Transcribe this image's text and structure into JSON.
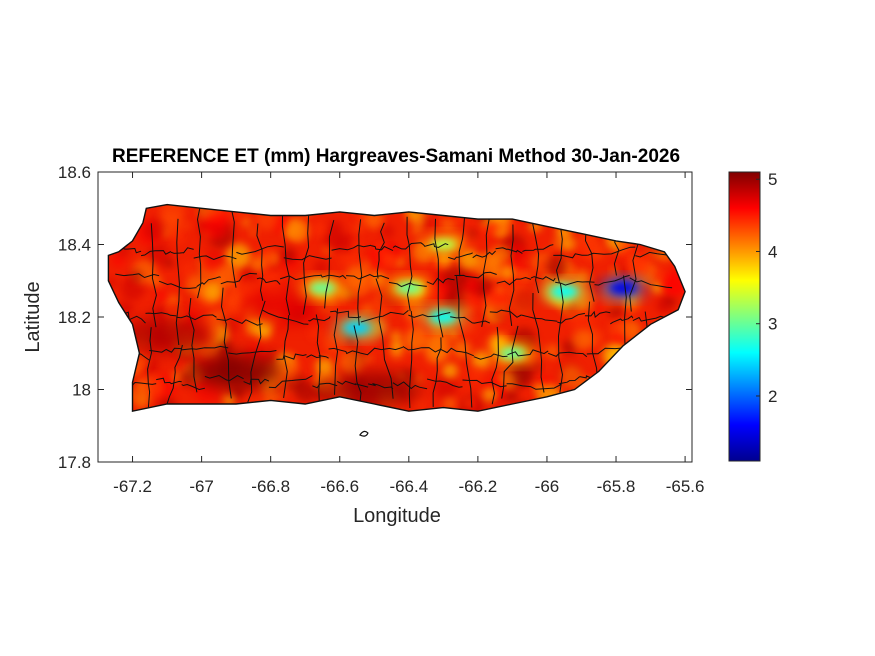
{
  "title": "REFERENCE ET (mm) Hargreaves-Samani Method  30-Jan-2026",
  "colors": {
    "background": "#ffffff",
    "axis": "#262626",
    "boundary": "#111111",
    "colormap": "jet"
  },
  "chart_data": {
    "type": "heatmap",
    "title": "REFERENCE ET (mm) Hargreaves-Samani Method  30-Jan-2026",
    "xlabel": "Longitude",
    "ylabel": "Latitude",
    "xlim": [
      -67.3,
      -65.58
    ],
    "ylim": [
      17.8,
      18.6
    ],
    "xticks": [
      -67.2,
      -67,
      -66.8,
      -66.6,
      -66.4,
      -66.2,
      -66,
      -65.8,
      -65.6
    ],
    "xtick_labels": [
      "-67.2",
      "-67",
      "-66.8",
      "-66.6",
      "-66.4",
      "-66.2",
      "-66",
      "-65.8",
      "-65.6"
    ],
    "yticks": [
      17.8,
      18,
      18.2,
      18.4,
      18.6
    ],
    "ytick_labels": [
      "17.8",
      "18",
      "18.2",
      "18.4",
      "18.6"
    ],
    "colorbar": {
      "min": 1.1,
      "max": 5.1,
      "ticks": [
        2,
        3,
        4,
        5
      ],
      "tick_labels": [
        "2",
        "3",
        "4",
        "5"
      ],
      "colormap": "jet"
    },
    "grid": false,
    "island_outline": [
      [
        -67.27,
        18.37
      ],
      [
        -67.24,
        18.38
      ],
      [
        -67.2,
        18.41
      ],
      [
        -67.17,
        18.46
      ],
      [
        -67.16,
        18.5
      ],
      [
        -67.1,
        18.51
      ],
      [
        -67.0,
        18.5
      ],
      [
        -66.9,
        18.49
      ],
      [
        -66.8,
        18.48
      ],
      [
        -66.7,
        18.48
      ],
      [
        -66.6,
        18.49
      ],
      [
        -66.5,
        18.48
      ],
      [
        -66.4,
        18.49
      ],
      [
        -66.3,
        18.48
      ],
      [
        -66.2,
        18.47
      ],
      [
        -66.1,
        18.47
      ],
      [
        -66.0,
        18.45
      ],
      [
        -65.9,
        18.43
      ],
      [
        -65.8,
        18.41
      ],
      [
        -65.73,
        18.4
      ],
      [
        -65.66,
        18.38
      ],
      [
        -65.63,
        18.34
      ],
      [
        -65.6,
        18.27
      ],
      [
        -65.62,
        18.22
      ],
      [
        -65.7,
        18.18
      ],
      [
        -65.78,
        18.12
      ],
      [
        -65.85,
        18.05
      ],
      [
        -65.92,
        18.0
      ],
      [
        -66.0,
        17.98
      ],
      [
        -66.1,
        17.96
      ],
      [
        -66.2,
        17.94
      ],
      [
        -66.3,
        17.95
      ],
      [
        -66.4,
        17.94
      ],
      [
        -66.5,
        17.96
      ],
      [
        -66.6,
        17.98
      ],
      [
        -66.7,
        17.96
      ],
      [
        -66.8,
        17.97
      ],
      [
        -66.9,
        17.96
      ],
      [
        -67.0,
        17.96
      ],
      [
        -67.1,
        17.96
      ],
      [
        -67.2,
        17.94
      ],
      [
        -67.2,
        18.02
      ],
      [
        -67.18,
        18.1
      ],
      [
        -67.2,
        18.18
      ],
      [
        -67.24,
        18.24
      ],
      [
        -67.27,
        18.3
      ],
      [
        -67.27,
        18.37
      ]
    ],
    "low_et_zones": [
      {
        "lon": -65.78,
        "lat": 18.28,
        "value": 1.5
      },
      {
        "lon": -65.95,
        "lat": 18.27,
        "value": 2.6
      },
      {
        "lon": -66.55,
        "lat": 18.17,
        "value": 2.4
      },
      {
        "lon": -66.3,
        "lat": 18.2,
        "value": 2.6
      },
      {
        "lon": -66.4,
        "lat": 18.28,
        "value": 3.0
      },
      {
        "lon": -66.65,
        "lat": 18.28,
        "value": 3.0
      },
      {
        "lon": -66.1,
        "lat": 18.1,
        "value": 3.0
      },
      {
        "lon": -66.3,
        "lat": 18.4,
        "value": 3.3
      }
    ],
    "high_et_zones": [
      {
        "lon": -66.9,
        "lat": 18.05,
        "value": 5.1
      },
      {
        "lon": -66.5,
        "lat": 18.0,
        "value": 5.0
      },
      {
        "lon": -67.1,
        "lat": 18.15,
        "value": 4.9
      },
      {
        "lon": -66.75,
        "lat": 18.23,
        "value": 4.7
      }
    ]
  }
}
